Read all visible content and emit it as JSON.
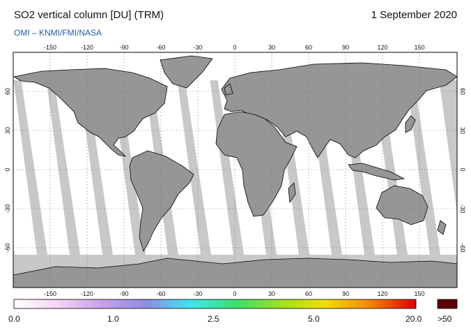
{
  "header": {
    "title": "SO2 vertical column [DU] (TRM)",
    "date": "1 September 2020",
    "source": "OMI  –  KNMI/FMI/NASA"
  },
  "map": {
    "lon_ticks": [
      "-150",
      "-120",
      "-90",
      "-60",
      "-30",
      "0",
      "30",
      "60",
      "90",
      "120",
      "150"
    ],
    "lat_ticks": [
      "60",
      "30",
      "0",
      "-30",
      "-60"
    ],
    "projection": "plate-carree",
    "colors": {
      "land_missing": "#969696",
      "ocean_missing": "#c8c8c8",
      "low_so2": "#ffffff",
      "coastline": "#000000",
      "gridline": "#6e6e6e"
    }
  },
  "legend": {
    "labels": [
      "0.0",
      "1.0",
      "2.5",
      "5.0",
      "20.0"
    ],
    "overflow_label": ">50",
    "overflow_color": "#5a0000",
    "gradient_colors": [
      "#ffffff",
      "#f3d3f3",
      "#c8a0ea",
      "#8d8de0",
      "#3ee6f0",
      "#38e070",
      "#9ae020",
      "#f0e000",
      "#f58a00",
      "#e00000"
    ]
  }
}
